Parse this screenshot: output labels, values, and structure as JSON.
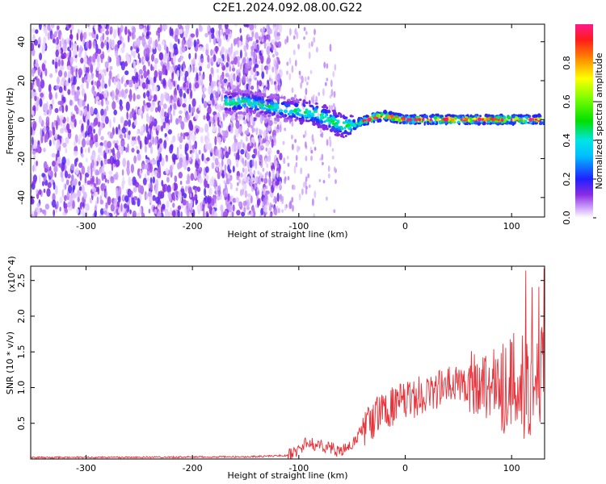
{
  "title": "C2E1.2024.092.08.00.G22",
  "chart_data": [
    {
      "type": "heatmap",
      "xlabel": "Height of straight line (km)",
      "ylabel": "Frequency (Hz)",
      "xlim": [
        -352,
        131
      ],
      "ylim": [
        -50,
        49
      ],
      "xticks": [
        "-300",
        "-200",
        "-100",
        "0",
        "100"
      ],
      "yticks": [
        "-40",
        "-20",
        "0",
        "20",
        "40"
      ],
      "colorbar_label": "Normalized spectral amplitude",
      "colorbar_range": [
        0,
        1
      ],
      "colorbar_ticks": [
        "0.0",
        "0.2",
        "0.4",
        "0.6",
        "0.8"
      ],
      "signal_track": {
        "x": [
          -170,
          -150,
          -130,
          -110,
          -95,
          -85,
          -75,
          -65,
          -58,
          -50,
          -40,
          -30,
          -20,
          -10,
          0,
          20,
          60,
          100,
          131
        ],
        "y": [
          9,
          9,
          7,
          5,
          4,
          3,
          1,
          -2,
          -3,
          -3,
          -1,
          1,
          2,
          1,
          0,
          0,
          0,
          0,
          0
        ]
      }
    },
    {
      "type": "line",
      "xlabel": "Height of straight line (km)",
      "ylabel": "SNR (10 * v/v)",
      "y_scale_label": "(x10^4)",
      "xlim": [
        -352,
        131
      ],
      "ylim": [
        0,
        2.7
      ],
      "xticks": [
        "-300",
        "-200",
        "-100",
        "0",
        "100"
      ],
      "yticks": [
        "0.5",
        "1.0",
        "1.5",
        "2.0",
        "2.5"
      ],
      "color": "#e8323a",
      "envelope": {
        "x": [
          -352,
          -150,
          -110,
          -100,
          -95,
          -75,
          -60,
          -50,
          -40,
          -30,
          -20,
          0,
          20,
          40,
          60,
          80,
          100,
          110,
          120,
          131
        ],
        "y": [
          0.02,
          0.03,
          0.05,
          0.12,
          0.22,
          0.18,
          0.1,
          0.2,
          0.42,
          0.55,
          0.7,
          0.8,
          0.92,
          1.02,
          1.08,
          1.05,
          1.05,
          1.05,
          1.1,
          1.15
        ]
      }
    }
  ]
}
